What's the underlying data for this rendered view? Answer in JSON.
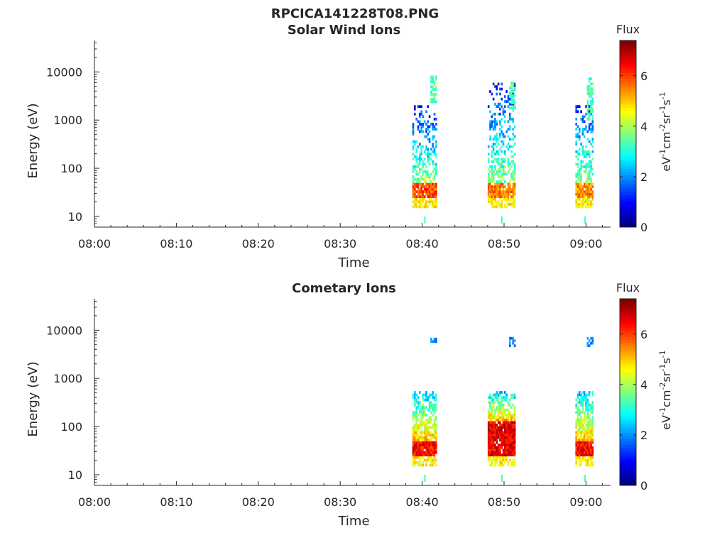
{
  "figure": {
    "main_title": "RPCICA141228T08.PNG"
  },
  "colors": {
    "axis": "#262626",
    "colormap": "jet"
  },
  "chart_data": [
    {
      "type": "heatmap",
      "title": "Solar Wind Ions",
      "xlabel": "Time",
      "ylabel": "Energy (eV)",
      "y_scale": "log",
      "x_ticks": [
        "08:00",
        "08:10",
        "08:20",
        "08:30",
        "08:40",
        "08:50",
        "09:00"
      ],
      "y_ticks": [
        "10",
        "100",
        "1000",
        "10000"
      ],
      "xlim": [
        "08:00",
        "09:03"
      ],
      "ylim_eV": [
        6,
        45000
      ],
      "colorbar": {
        "label": "Flux",
        "unit_label": "eV-1cm-2sr-1s-1",
        "ticks": [
          "0",
          "2",
          "4",
          "6"
        ],
        "range": [
          0,
          7.4
        ]
      },
      "bursts": [
        {
          "time_start": "08:38.8",
          "time_end": "08:41.7",
          "core_flux": 6.5,
          "core_energy_eV": [
            22,
            45
          ],
          "spread_max_eV": 2000,
          "high_tail_eV": [
            2000,
            8000
          ]
        },
        {
          "time_start": "08:48.0",
          "time_end": "08:51.3",
          "core_flux": 6.2,
          "core_energy_eV": [
            22,
            45
          ],
          "spread_max_eV": 5500,
          "high_tail_eV": [
            1500,
            6000
          ]
        },
        {
          "time_start": "08:58.7",
          "time_end": "09:00.9",
          "core_flux": 6.0,
          "core_energy_eV": [
            22,
            45
          ],
          "spread_max_eV": 2500,
          "high_tail_eV": [
            1000,
            7500
          ]
        }
      ]
    },
    {
      "type": "heatmap",
      "title": "Cometary Ions",
      "xlabel": "Time",
      "ylabel": "Energy (eV)",
      "y_scale": "log",
      "x_ticks": [
        "08:00",
        "08:10",
        "08:20",
        "08:30",
        "08:40",
        "08:50",
        "09:00"
      ],
      "y_ticks": [
        "10",
        "100",
        "1000",
        "10000"
      ],
      "xlim": [
        "08:00",
        "09:03"
      ],
      "ylim_eV": [
        6,
        45000
      ],
      "colorbar": {
        "label": "Flux",
        "unit_label": "eV-1cm-2sr-1s-1",
        "ticks": [
          "0",
          "2",
          "4",
          "6"
        ],
        "range": [
          0,
          7.4
        ]
      },
      "bursts": [
        {
          "time_start": "08:38.8",
          "time_end": "08:41.7",
          "core_flux": 7.0,
          "core_energy_eV": [
            22,
            45
          ],
          "spread_max_eV": 500,
          "high_tail_eV": [
            5500,
            6500
          ]
        },
        {
          "time_start": "08:48.0",
          "time_end": "08:51.3",
          "core_flux": 7.2,
          "core_energy_eV": [
            22,
            120
          ],
          "spread_max_eV": 500,
          "high_tail_eV": [
            4500,
            6500
          ]
        },
        {
          "time_start": "08:58.7",
          "time_end": "09:00.9",
          "core_flux": 7.0,
          "core_energy_eV": [
            22,
            45
          ],
          "spread_max_eV": 500,
          "high_tail_eV": [
            4500,
            7000
          ]
        }
      ]
    }
  ]
}
